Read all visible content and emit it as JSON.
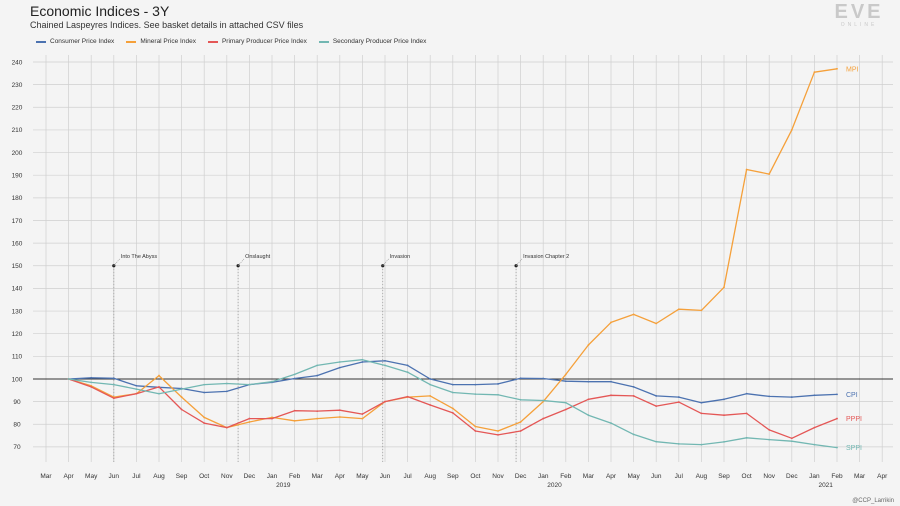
{
  "header": {
    "title": "Economic Indices - 3Y",
    "subtitle": "Chained Laspeyres Indices. See basket details in attached CSV files"
  },
  "logo": {
    "main": "EVE",
    "sub": "ONLINE"
  },
  "credit": "@CCP_Larrikin",
  "colors": {
    "cpi": "#4c72b0",
    "mpi": "#f5a03a",
    "ppi": "#e45756",
    "sppi": "#72b7b2",
    "grid": "#cfcfcf",
    "baseline": "#333333"
  },
  "chart_data": {
    "type": "line",
    "title": "Economic Indices - 3Y",
    "subtitle": "Chained Laspeyres Indices. See basket details in attached CSV files",
    "x_tick_labels": [
      "Mar",
      "Apr",
      "May",
      "Jun",
      "Jul",
      "Aug",
      "Sep",
      "Oct",
      "Nov",
      "Dec",
      "Jan",
      "Feb",
      "Mar",
      "Apr",
      "May",
      "Jun",
      "Jul",
      "Aug",
      "Sep",
      "Oct",
      "Nov",
      "Dec",
      "Jan",
      "Feb",
      "Mar",
      "Apr",
      "May",
      "Jun",
      "Jul",
      "Aug",
      "Sep",
      "Oct",
      "Nov",
      "Dec",
      "Jan",
      "Feb",
      "Mar",
      "Apr"
    ],
    "year_labels": [
      {
        "after_index": 10,
        "label": "2019"
      },
      {
        "after_index": 22,
        "label": "2020"
      },
      {
        "after_index": 34,
        "label": "2021"
      }
    ],
    "y_ticks": [
      70,
      80,
      90,
      100,
      110,
      120,
      130,
      140,
      150,
      160,
      170,
      180,
      190,
      200,
      210,
      220,
      230,
      240
    ],
    "ylim": [
      65,
      243
    ],
    "baseline": 100,
    "grid": true,
    "legend_position": "top-left",
    "series": [
      {
        "key": "cpi",
        "name": "Consumer Price Index",
        "end_label": "CPI",
        "start_index": 1,
        "values": [
          100,
          100.5,
          100.3,
          97,
          96.3,
          95.8,
          94,
          94.5,
          97.5,
          98.5,
          100.2,
          101.5,
          105,
          107.5,
          108,
          106,
          100,
          97.5,
          97.5,
          97.8,
          100.3,
          100.2,
          99,
          98.8,
          98.8,
          96.5,
          92.5,
          92,
          89.5,
          91,
          93.5,
          92.3,
          92,
          92.8,
          93.2
        ]
      },
      {
        "key": "mpi",
        "name": "Mineral Price Index",
        "end_label": "MPI",
        "start_index": 1,
        "values": [
          100,
          97,
          92,
          93.5,
          101.5,
          92,
          83,
          78.5,
          81,
          83,
          81.5,
          82.5,
          83.2,
          82.5,
          90,
          92,
          92.5,
          87,
          79,
          77,
          81,
          90,
          102,
          115,
          125,
          128.5,
          124.5,
          130.8,
          130.3,
          140.5,
          192.5,
          190.5,
          210,
          235.5,
          237
        ]
      },
      {
        "key": "ppi",
        "name": "Primary Producer Price Index",
        "end_label": "PPPI",
        "start_index": 1,
        "values": [
          100,
          96.5,
          91.5,
          93.5,
          96.5,
          86.5,
          80.5,
          78.5,
          82.5,
          82.5,
          86,
          85.8,
          86.2,
          84.5,
          90,
          92.2,
          88.5,
          85,
          77,
          75.3,
          77,
          82.5,
          86.5,
          91,
          92.8,
          92.5,
          88,
          89.8,
          84.8,
          84,
          84.8,
          77.5,
          73.8,
          78.5,
          82.5
        ]
      },
      {
        "key": "sppi",
        "name": "Secondary Producer Price Index",
        "end_label": "SPPI",
        "start_index": 1,
        "values": [
          100,
          98.5,
          97.5,
          95.5,
          93.5,
          95.5,
          97.5,
          98,
          97.5,
          98.8,
          102,
          106,
          107.5,
          108.5,
          106,
          103,
          97.5,
          94,
          93.3,
          93,
          90.8,
          90.5,
          89.5,
          84,
          80.5,
          75.5,
          72.3,
          71.3,
          71,
          72.2,
          74,
          73.2,
          72.5,
          71,
          69.7
        ]
      }
    ],
    "annotations": [
      {
        "label": "Into The Abyss",
        "x_index": 3,
        "y": 150
      },
      {
        "label": "Onslaught",
        "x_index": 8.5,
        "y": 150
      },
      {
        "label": "Invasion",
        "x_index": 14.9,
        "y": 150
      },
      {
        "label": "Invasion Chapter 2",
        "x_index": 20.8,
        "y": 150
      }
    ]
  }
}
